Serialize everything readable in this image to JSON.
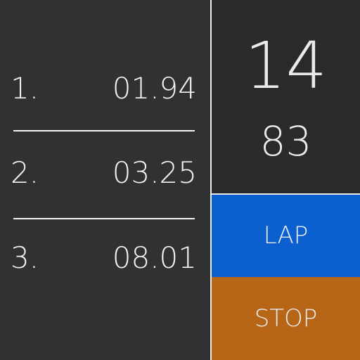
{
  "laps": [
    {
      "number": "1.",
      "time": "01.94"
    },
    {
      "number": "2.",
      "time": "03.25"
    },
    {
      "number": "3.",
      "time": "08.01"
    }
  ],
  "timer": {
    "seconds": "14",
    "hundredths": "83"
  },
  "buttons": {
    "lap_label": "LAP",
    "stop_label": "STOP"
  },
  "colors": {
    "background": "#303133",
    "timer_background": "#2a2a2a",
    "lap_button": "#0b5fcf",
    "stop_button": "#b76516",
    "text": "#f2f2f2"
  }
}
